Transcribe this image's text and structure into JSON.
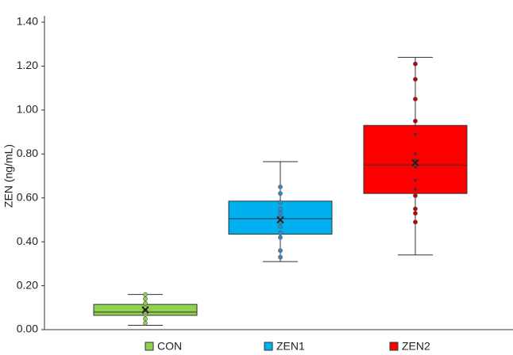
{
  "chart_data": {
    "type": "box",
    "y_label": "ZEN (ng/mL)",
    "ylim": [
      0,
      1.4
    ],
    "yticks": [
      {
        "value": 0,
        "label": "0.00"
      },
      {
        "value": 0.2,
        "label": "0.20"
      },
      {
        "value": 0.4,
        "label": "0.40"
      },
      {
        "value": 0.6,
        "label": "0.60"
      },
      {
        "value": 0.8,
        "label": "0.80"
      },
      {
        "value": 1.0,
        "label": "1.00"
      },
      {
        "value": 1.2,
        "label": "1.20"
      },
      {
        "value": 1.4,
        "label": "1.40"
      }
    ],
    "series": [
      {
        "name": "CON",
        "color": "#92d050",
        "point_color": "#92d050",
        "whisker_low": 0.02,
        "q1": 0.065,
        "median": 0.08,
        "q3": 0.115,
        "whisker_high": 0.16,
        "mean": 0.09,
        "points": [
          0.03,
          0.05,
          0.07,
          0.08,
          0.09,
          0.1,
          0.12,
          0.14,
          0.16
        ]
      },
      {
        "name": "ZEN1",
        "color": "#00b0f0",
        "point_color": "#2a8fd0",
        "whisker_low": 0.31,
        "q1": 0.435,
        "median": 0.505,
        "q3": 0.585,
        "whisker_high": 0.765,
        "mean": 0.5,
        "points": [
          0.33,
          0.36,
          0.42,
          0.44,
          0.47,
          0.49,
          0.51,
          0.53,
          0.55,
          0.58,
          0.62,
          0.65
        ]
      },
      {
        "name": "ZEN2",
        "color": "#ff0000",
        "point_color": "#c00000",
        "whisker_low": 0.34,
        "q1": 0.62,
        "median": 0.75,
        "q3": 0.93,
        "whisker_high": 1.24,
        "mean": 0.76,
        "points": [
          0.49,
          0.53,
          0.55,
          0.61,
          0.64,
          0.68,
          0.74,
          0.77,
          0.8,
          0.89,
          0.95,
          1.05,
          1.14,
          1.21
        ]
      }
    ]
  }
}
